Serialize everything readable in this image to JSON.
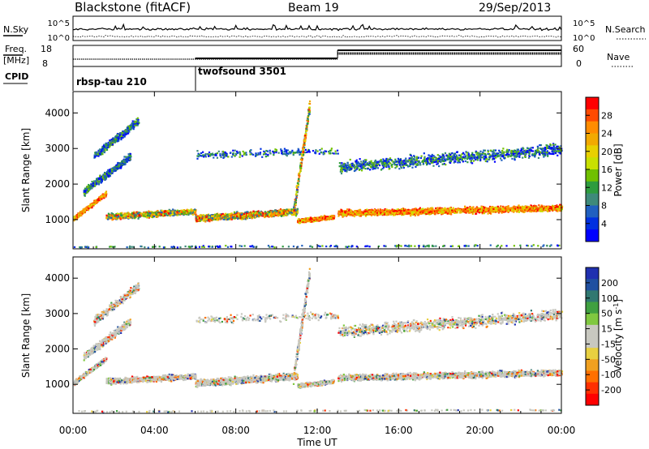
{
  "header": {
    "station": "Blackstone (fitACF)",
    "beam": "Beam 19",
    "date": "29/Sep/2013"
  },
  "noise_panel": {
    "left_label": "N.Sky",
    "right_label": "N.Search",
    "top_tick": "10^5",
    "bottom_tick": "10^0"
  },
  "freq_panel": {
    "left_label_1": "Freq.",
    "left_label_2": "[MHz]",
    "right_label": "Nave",
    "left_ticks": [
      "18",
      "8"
    ],
    "right_ticks": [
      "60",
      "0"
    ]
  },
  "cpid": {
    "label": "CPID",
    "segments": [
      {
        "name": "rbsp-tau 210",
        "start_h": 0
      },
      {
        "name": "twofsound 3501",
        "start_h": 6
      }
    ]
  },
  "chart_data": [
    {
      "type": "heatmap",
      "parameter": "Power",
      "ylabel": "Slant Range [km]",
      "yticks": [
        1000,
        2000,
        3000,
        4000
      ],
      "ylim": [
        180,
        4600
      ],
      "colorbar": {
        "label": "Power [dB]",
        "ticks": [
          "28",
          "24",
          "20",
          "16",
          "12",
          "8",
          "4"
        ],
        "colors": [
          "#ff0000",
          "#ff4a00",
          "#ff8c00",
          "#f2a900",
          "#e8d000",
          "#c8e000",
          "#70c000",
          "#2e9c3e",
          "#3e8a7a",
          "#2060c0",
          "#0030e0",
          "#0000ff"
        ]
      }
    },
    {
      "type": "heatmap",
      "parameter": "Velocity",
      "ylabel": "Slant Range [km]",
      "yticks": [
        1000,
        2000,
        3000,
        4000
      ],
      "ylim": [
        180,
        4600
      ],
      "colorbar": {
        "label": "Velocity [m s",
        "label_sup": "-1",
        "label_end": "]",
        "ticks": [
          "200",
          "100",
          "50",
          "15",
          "-15",
          "-50",
          "-100",
          "-200"
        ],
        "colors": [
          "#2030b0",
          "#2050a0",
          "#307870",
          "#40a040",
          "#80c840",
          "#c8c8c0",
          "#c8c8c0",
          "#e8d040",
          "#f0a020",
          "#ff7000",
          "#ff3000",
          "#ff0000"
        ]
      }
    }
  ],
  "x_axis": {
    "label": "Time UT",
    "ticks": [
      "00:00",
      "04:00",
      "08:00",
      "12:00",
      "16:00",
      "20:00",
      "00:00"
    ]
  }
}
